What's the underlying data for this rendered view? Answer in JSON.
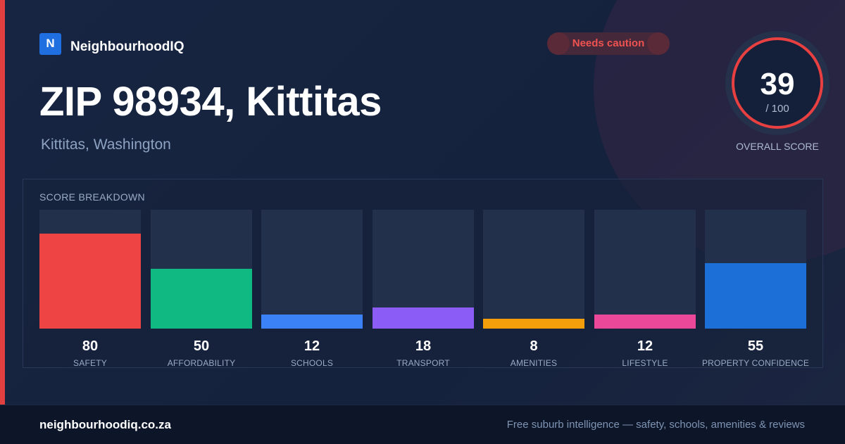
{
  "brand": {
    "logo_letter": "N",
    "name": "NeighbourhoodIQ"
  },
  "badge": {
    "label": "Needs caution",
    "color": "#ef5350"
  },
  "location": {
    "title": "ZIP 98934, Kittitas",
    "subtitle": "Kittitas, Washington"
  },
  "overall": {
    "score": "39",
    "out_of": "/ 100",
    "caption": "OVERALL SCORE",
    "ring_color": "#e84040"
  },
  "breakdown": {
    "title": "SCORE BREAKDOWN",
    "items": [
      {
        "label": "SAFETY",
        "value": 80,
        "color": "#ef4444"
      },
      {
        "label": "AFFORDABILITY",
        "value": 50,
        "color": "#10b981"
      },
      {
        "label": "SCHOOLS",
        "value": 12,
        "color": "#3b82f6"
      },
      {
        "label": "TRANSPORT",
        "value": 18,
        "color": "#8b5cf6"
      },
      {
        "label": "AMENITIES",
        "value": 8,
        "color": "#f59e0b"
      },
      {
        "label": "LIFESTYLE",
        "value": 12,
        "color": "#ec4899"
      },
      {
        "label": "PROPERTY CONFIDENCE",
        "value": 55,
        "color": "#1d6fd8"
      }
    ]
  },
  "footer": {
    "url": "neighbourhoodiq.co.za",
    "tagline": "Free suburb intelligence — safety, schools, amenities & reviews"
  }
}
